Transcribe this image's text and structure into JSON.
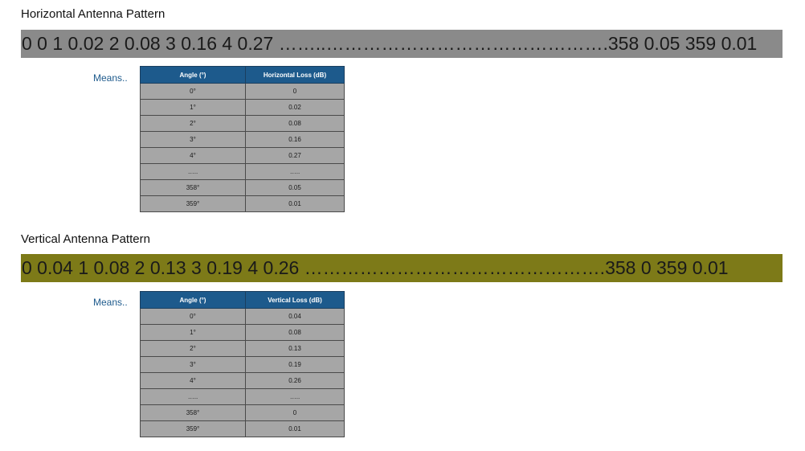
{
  "horizontal": {
    "title": "Horizontal Antenna Pattern",
    "band_text": "0 0 1 0.02 2 0.08 3 0.16 4 0.27 ……..……………………………………….358 0.05 359 0.01",
    "means_label": "Means..",
    "headers": [
      "Angle (°)",
      "Horizontal Loss (dB)"
    ],
    "rows": [
      [
        "0°",
        "0"
      ],
      [
        "1°",
        "0.02"
      ],
      [
        "2°",
        "0.08"
      ],
      [
        "3°",
        "0.16"
      ],
      [
        "4°",
        "0.27"
      ],
      [
        "…..",
        "….."
      ],
      [
        "358°",
        "0.05"
      ],
      [
        "359°",
        "0.01"
      ]
    ],
    "band_color": "#8a8a8a"
  },
  "vertical": {
    "title": "Vertical Antenna Pattern",
    "band_text": "0 0.04 1 0.08 2 0.13 3 0.19 4 0.26 ………………………………………….358 0 359 0.01",
    "means_label": "Means..",
    "headers": [
      "Angle (°)",
      "Vertical Loss (dB)"
    ],
    "rows": [
      [
        "0°",
        "0.04"
      ],
      [
        "1°",
        "0.08"
      ],
      [
        "2°",
        "0.13"
      ],
      [
        "3°",
        "0.19"
      ],
      [
        "4°",
        "0.26"
      ],
      [
        "…..",
        "….."
      ],
      [
        "358°",
        "0"
      ],
      [
        "359°",
        "0.01"
      ]
    ],
    "band_color": "#7d7a18"
  },
  "header_color": "#1d5a8c",
  "cell_color": "#a6a6a6"
}
